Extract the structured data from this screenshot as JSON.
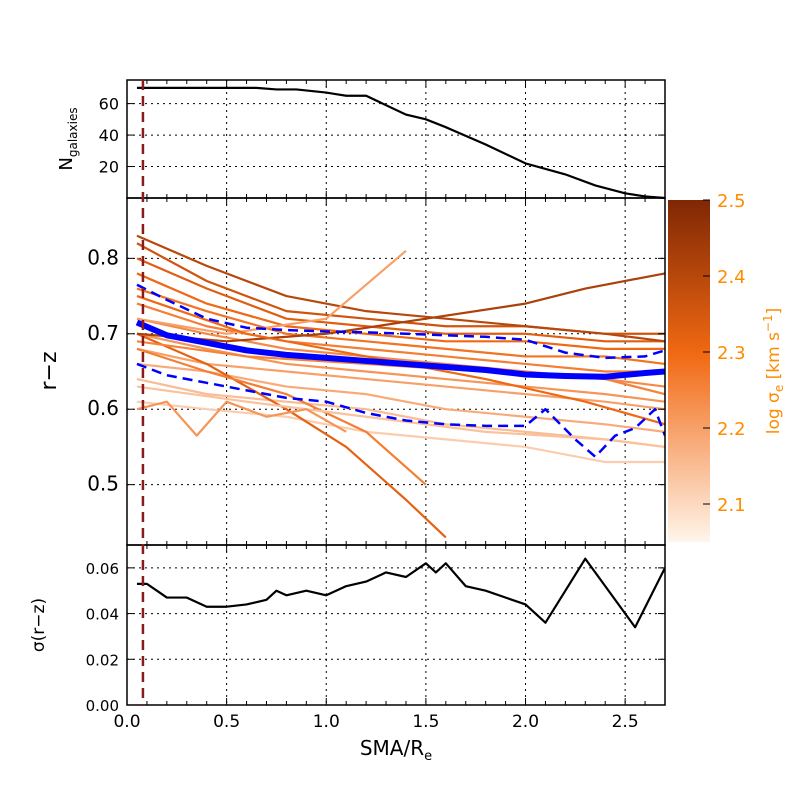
{
  "chart_data": [
    {
      "type": "area",
      "panel": "top",
      "ylabel": "N",
      "ylabel_sub": "galaxies",
      "xlim": [
        0,
        2.7
      ],
      "ylim": [
        0,
        75
      ],
      "yticks": [
        20,
        40,
        60
      ],
      "fill_color": "#add8e6",
      "x": [
        0.05,
        0.1,
        0.3,
        0.5,
        0.65,
        0.75,
        0.85,
        1.0,
        1.05,
        1.1,
        1.2,
        1.4,
        1.5,
        1.6,
        1.8,
        2.0,
        2.2,
        2.35,
        2.5,
        2.6,
        2.7
      ],
      "values": [
        70,
        70,
        70,
        70,
        70,
        69,
        69,
        67,
        66,
        65,
        65,
        53,
        50,
        45,
        34,
        22,
        15,
        8,
        3,
        1,
        0
      ]
    },
    {
      "type": "line",
      "panel": "middle",
      "ylabel": "r−z",
      "xlim": [
        0,
        2.7
      ],
      "ylim": [
        0.42,
        0.88
      ],
      "yticks": [
        0.5,
        0.6,
        0.7,
        0.8
      ],
      "series": [
        {
          "name": "median",
          "color": "#0000ff",
          "style": "solid",
          "x": [
            0.05,
            0.2,
            0.4,
            0.6,
            0.8,
            1.0,
            1.2,
            1.4,
            1.6,
            1.8,
            2.0,
            2.2,
            2.4,
            2.6,
            2.7
          ],
          "values": [
            0.715,
            0.698,
            0.688,
            0.678,
            0.672,
            0.668,
            0.664,
            0.66,
            0.656,
            0.652,
            0.646,
            0.644,
            0.643,
            0.648,
            0.65
          ]
        },
        {
          "name": "upper",
          "color": "#0000ff",
          "style": "dashed",
          "x": [
            0.05,
            0.2,
            0.4,
            0.6,
            0.8,
            1.0,
            1.2,
            1.4,
            1.6,
            1.8,
            2.0,
            2.2,
            2.4,
            2.6,
            2.7
          ],
          "values": [
            0.765,
            0.745,
            0.72,
            0.708,
            0.705,
            0.703,
            0.702,
            0.7,
            0.698,
            0.696,
            0.692,
            0.675,
            0.668,
            0.67,
            0.678
          ]
        },
        {
          "name": "lower",
          "color": "#0000ff",
          "style": "dashed",
          "x": [
            0.05,
            0.2,
            0.4,
            0.6,
            0.8,
            1.0,
            1.2,
            1.4,
            1.6,
            1.8,
            2.0,
            2.1,
            2.25,
            2.35,
            2.45,
            2.55,
            2.65,
            2.7
          ],
          "values": [
            0.66,
            0.645,
            0.635,
            0.625,
            0.615,
            0.61,
            0.595,
            0.585,
            0.58,
            0.578,
            0.578,
            0.6,
            0.56,
            0.537,
            0.565,
            0.575,
            0.6,
            0.565
          ]
        }
      ],
      "individual_profiles": [
        {
          "sigma": 2.12,
          "x": [
            0.05,
            0.4,
            0.8,
            1.2,
            1.6,
            2.0,
            2.4,
            2.7
          ],
          "values": [
            0.61,
            0.6,
            0.59,
            0.57,
            0.56,
            0.55,
            0.53,
            0.53
          ]
        },
        {
          "sigma": 2.15,
          "x": [
            0.05,
            0.4,
            0.8,
            1.2,
            1.6,
            2.0,
            2.4,
            2.7
          ],
          "values": [
            0.64,
            0.62,
            0.61,
            0.6,
            0.58,
            0.57,
            0.56,
            0.55
          ]
        },
        {
          "sigma": 2.18,
          "x": [
            0.05,
            0.4,
            0.8,
            1.2,
            1.6,
            2.0,
            2.4,
            2.7
          ],
          "values": [
            0.66,
            0.65,
            0.63,
            0.62,
            0.6,
            0.59,
            0.58,
            0.57
          ]
        },
        {
          "sigma": 2.2,
          "x": [
            0.05,
            0.4,
            0.8,
            1.2,
            1.6,
            2.0,
            2.4,
            2.7
          ],
          "values": [
            0.68,
            0.66,
            0.65,
            0.64,
            0.63,
            0.62,
            0.61,
            0.6
          ]
        },
        {
          "sigma": 2.22,
          "x": [
            0.05,
            0.4,
            0.8,
            1.2,
            1.6,
            2.0,
            2.4,
            2.7
          ],
          "values": [
            0.7,
            0.68,
            0.66,
            0.65,
            0.64,
            0.63,
            0.62,
            0.61
          ]
        },
        {
          "sigma": 2.24,
          "x": [
            0.05,
            0.4,
            0.8,
            1.2,
            1.6,
            2.0,
            2.4,
            2.7
          ],
          "values": [
            0.72,
            0.7,
            0.68,
            0.67,
            0.66,
            0.65,
            0.64,
            0.63
          ]
        },
        {
          "sigma": 2.26,
          "x": [
            0.05,
            0.4,
            0.8,
            1.2,
            1.6,
            2.0,
            2.4,
            2.7
          ],
          "values": [
            0.74,
            0.71,
            0.69,
            0.68,
            0.67,
            0.66,
            0.65,
            0.65
          ]
        },
        {
          "sigma": 2.28,
          "x": [
            0.05,
            0.4,
            0.8,
            1.2,
            1.6,
            2.0,
            2.4,
            2.7
          ],
          "values": [
            0.76,
            0.73,
            0.7,
            0.69,
            0.68,
            0.67,
            0.67,
            0.66
          ]
        },
        {
          "sigma": 2.3,
          "x": [
            0.05,
            0.4,
            0.8,
            1.2,
            1.6,
            2.0,
            2.4,
            2.7
          ],
          "values": [
            0.78,
            0.74,
            0.71,
            0.7,
            0.69,
            0.69,
            0.68,
            0.68
          ]
        },
        {
          "sigma": 2.33,
          "x": [
            0.05,
            0.4,
            0.8,
            1.2,
            1.6,
            2.0,
            2.4,
            2.7
          ],
          "values": [
            0.8,
            0.76,
            0.72,
            0.71,
            0.7,
            0.7,
            0.69,
            0.69
          ]
        },
        {
          "sigma": 2.36,
          "x": [
            0.05,
            0.4,
            0.8,
            1.2,
            1.6,
            2.0,
            2.4,
            2.7
          ],
          "values": [
            0.82,
            0.77,
            0.73,
            0.72,
            0.71,
            0.71,
            0.7,
            0.7
          ]
        },
        {
          "sigma": 2.4,
          "x": [
            0.05,
            0.4,
            0.8,
            1.2,
            1.6,
            2.0,
            2.4,
            2.7
          ],
          "values": [
            0.83,
            0.79,
            0.75,
            0.73,
            0.72,
            0.71,
            0.7,
            0.69
          ]
        },
        {
          "sigma": 2.32,
          "x": [
            0.05,
            0.4,
            0.8,
            1.1,
            1.4,
            1.6
          ],
          "values": [
            0.7,
            0.66,
            0.6,
            0.55,
            0.48,
            0.43
          ]
        },
        {
          "sigma": 2.26,
          "x": [
            0.05,
            0.4,
            0.8,
            1.2,
            1.5
          ],
          "values": [
            0.68,
            0.65,
            0.62,
            0.57,
            0.5
          ]
        },
        {
          "sigma": 2.2,
          "x": [
            0.05,
            0.5,
            1.0,
            1.4
          ],
          "values": [
            0.72,
            0.7,
            0.72,
            0.81
          ]
        },
        {
          "sigma": 2.42,
          "x": [
            0.05,
            0.5,
            1.0,
            1.5,
            2.0,
            2.3,
            2.7
          ],
          "values": [
            0.7,
            0.69,
            0.7,
            0.72,
            0.74,
            0.76,
            0.78
          ]
        },
        {
          "sigma": 2.25,
          "x": [
            0.05,
            0.6,
            1.2,
            1.8,
            2.4,
            2.7
          ],
          "values": [
            0.69,
            0.67,
            0.66,
            0.65,
            0.64,
            0.62
          ]
        },
        {
          "sigma": 2.14,
          "x": [
            0.05,
            0.6,
            1.2,
            1.8,
            2.4,
            2.7
          ],
          "values": [
            0.63,
            0.61,
            0.59,
            0.57,
            0.56,
            0.55
          ]
        },
        {
          "sigma": 2.3,
          "x": [
            0.05,
            0.6,
            1.2,
            1.8,
            2.3,
            2.7
          ],
          "values": [
            0.75,
            0.7,
            0.67,
            0.64,
            0.61,
            0.58
          ]
        },
        {
          "sigma": 2.22,
          "x": [
            0.05,
            0.2,
            0.35,
            0.5,
            0.7,
            0.9,
            1.1
          ],
          "values": [
            0.6,
            0.61,
            0.565,
            0.61,
            0.59,
            0.6,
            0.57
          ]
        }
      ]
    },
    {
      "type": "line",
      "panel": "bottom",
      "ylabel": "σ(r−z)",
      "xlabel": "SMA/R",
      "xlabel_sub": "e",
      "xlim": [
        0,
        2.7
      ],
      "ylim": [
        0,
        0.07
      ],
      "yticks": [
        0.0,
        0.02,
        0.04,
        0.06
      ],
      "xticks": [
        0.0,
        0.5,
        1.0,
        1.5,
        2.0,
        2.5
      ],
      "x": [
        0.05,
        0.1,
        0.15,
        0.2,
        0.3,
        0.4,
        0.5,
        0.6,
        0.7,
        0.75,
        0.8,
        0.9,
        1.0,
        1.1,
        1.2,
        1.3,
        1.4,
        1.5,
        1.55,
        1.6,
        1.7,
        1.8,
        2.0,
        2.1,
        2.2,
        2.3,
        2.4,
        2.55,
        2.7
      ],
      "values": [
        0.053,
        0.053,
        0.05,
        0.047,
        0.047,
        0.043,
        0.043,
        0.044,
        0.046,
        0.05,
        0.048,
        0.05,
        0.048,
        0.052,
        0.054,
        0.058,
        0.056,
        0.062,
        0.058,
        0.062,
        0.052,
        0.05,
        0.044,
        0.036,
        0.05,
        0.064,
        0.052,
        0.034,
        0.06
      ]
    }
  ],
  "colorbar": {
    "label": "log σ",
    "label_sub": "e",
    "label_unit": " [km s",
    "label_exp": "−1",
    "label_end": "]",
    "ticks": [
      "2.1",
      "2.2",
      "2.3",
      "2.4",
      "2.5"
    ],
    "range": [
      2.05,
      2.5
    ],
    "color_low": "#fff5eb",
    "color_mid": "#f16913",
    "color_high": "#7f2704",
    "text_color": "#ff8c00"
  },
  "vline": {
    "x": 0.08,
    "color": "#8b1a1a"
  }
}
